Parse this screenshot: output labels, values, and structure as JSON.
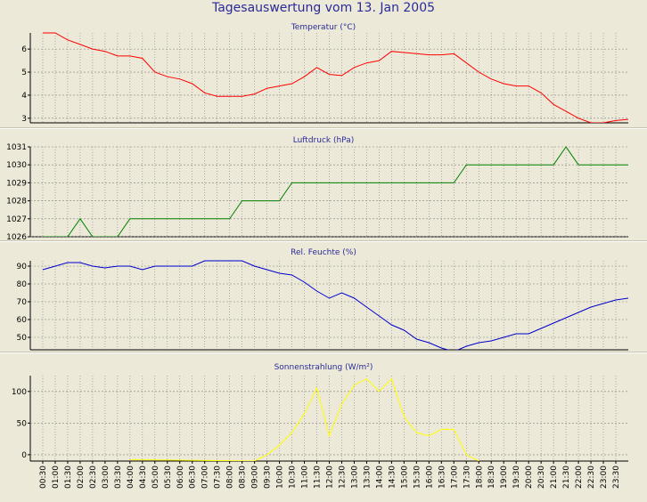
{
  "page": {
    "title": "Tagesauswertung vom 13. Jan 2005"
  },
  "time_labels": [
    "00:30",
    "01:00",
    "01:30",
    "02:00",
    "02:30",
    "03:00",
    "03:30",
    "04:00",
    "04:30",
    "05:00",
    "05:30",
    "06:00",
    "06:30",
    "07:00",
    "07:30",
    "08:00",
    "08:30",
    "09:00",
    "09:30",
    "10:00",
    "10:30",
    "11:00",
    "11:30",
    "12:00",
    "12:30",
    "13:00",
    "13:30",
    "14:00",
    "14:30",
    "15:00",
    "15:30",
    "16:00",
    "16:30",
    "17:00",
    "17:30",
    "18:00",
    "18:30",
    "19:00",
    "19:30",
    "20:00",
    "20:30",
    "21:00",
    "21:30",
    "22:00",
    "22:30",
    "23:00",
    "23:30"
  ],
  "colors": {
    "background": "#ece9d8",
    "grid": "#808080",
    "title": "#2a2a9a"
  },
  "chart_data": [
    {
      "type": "line",
      "title": "Temperatur (°C)",
      "color": "#ff0000",
      "ylim": [
        2.8,
        6.7
      ],
      "yticks": [
        3,
        4,
        5,
        6
      ],
      "x": [
        0,
        0.5,
        1,
        1.5,
        2,
        2.5,
        3,
        3.5,
        4,
        4.5,
        5,
        5.5,
        6,
        6.5,
        7,
        7.5,
        8,
        8.5,
        9,
        9.5,
        10,
        10.5,
        11,
        11.5,
        12,
        12.5,
        13,
        13.5,
        14,
        14.5,
        15,
        15.5,
        16,
        16.5,
        17,
        17.5,
        18,
        18.5,
        19,
        19.5,
        20,
        20.5,
        21,
        21.5,
        22,
        22.5,
        23,
        23.5
      ],
      "values": [
        6.7,
        6.7,
        6.4,
        6.2,
        6.0,
        5.9,
        5.7,
        5.7,
        5.6,
        5.0,
        4.8,
        4.7,
        4.5,
        4.1,
        3.95,
        3.95,
        3.95,
        4.05,
        4.3,
        4.4,
        4.5,
        4.8,
        5.2,
        4.9,
        4.85,
        5.2,
        5.4,
        5.5,
        5.9,
        5.85,
        5.8,
        5.75,
        5.75,
        5.8,
        5.4,
        5.0,
        4.7,
        4.5,
        4.4,
        4.4,
        4.1,
        3.6,
        3.3,
        3.0,
        2.8,
        2.8,
        2.9,
        2.95
      ]
    },
    {
      "type": "line",
      "title": "Luftdruck (hPa)",
      "color": "#008000",
      "ylim": [
        1026,
        1031
      ],
      "yticks": [
        1026,
        1027,
        1028,
        1029,
        1030,
        1031
      ],
      "x": [
        0,
        0.5,
        1,
        1.5,
        2,
        2.5,
        3,
        3.5,
        4,
        4.5,
        5,
        5.5,
        6,
        6.5,
        7,
        7.5,
        8,
        8.5,
        9,
        9.5,
        10,
        10.5,
        11,
        11.5,
        12,
        12.5,
        13,
        13.5,
        14,
        14.5,
        15,
        15.5,
        16,
        16.5,
        17,
        17.5,
        18,
        18.5,
        19,
        19.5,
        20,
        20.5,
        21,
        21.5,
        22,
        22.5,
        23,
        23.5
      ],
      "values": [
        1026,
        1026,
        1026,
        1027,
        1026,
        1026,
        1026,
        1027,
        1027,
        1027,
        1027,
        1027,
        1027,
        1027,
        1027,
        1027,
        1028,
        1028,
        1028,
        1028,
        1029,
        1029,
        1029,
        1029,
        1029,
        1029,
        1029,
        1029,
        1029,
        1029,
        1029,
        1029,
        1029,
        1029,
        1030,
        1030,
        1030,
        1030,
        1030,
        1030,
        1030,
        1030,
        1031,
        1030,
        1030,
        1030,
        1030,
        1030
      ]
    },
    {
      "type": "line",
      "title": "Rel. Feuchte (%)",
      "color": "#0000cc",
      "ylim": [
        43,
        93
      ],
      "yticks": [
        50,
        60,
        70,
        80,
        90
      ],
      "x": [
        0,
        0.5,
        1,
        1.5,
        2,
        2.5,
        3,
        3.5,
        4,
        4.5,
        5,
        5.5,
        6,
        6.5,
        7,
        7.5,
        8,
        8.5,
        9,
        9.5,
        10,
        10.5,
        11,
        11.5,
        12,
        12.5,
        13,
        13.5,
        14,
        14.5,
        15,
        15.5,
        16,
        16.5,
        17,
        17.5,
        18,
        18.5,
        19,
        19.5,
        20,
        20.5,
        21,
        21.5,
        22,
        22.5,
        23,
        23.5
      ],
      "values": [
        88,
        90,
        92,
        92,
        90,
        89,
        90,
        90,
        88,
        90,
        90,
        90,
        90,
        93,
        93,
        93,
        93,
        90,
        88,
        86,
        85,
        81,
        76,
        72,
        75,
        72,
        67,
        62,
        57,
        54,
        49,
        47,
        44,
        42,
        45,
        47,
        48,
        50,
        52,
        52,
        55,
        58,
        61,
        64,
        67,
        69,
        71,
        72
      ]
    },
    {
      "type": "line",
      "title": "Sonnenstrahlung (W/m²)",
      "color": "#ffff00",
      "ylim": [
        -10,
        125
      ],
      "yticks": [
        0,
        50,
        100
      ],
      "x": [
        3.5,
        4,
        8.5,
        9,
        9.5,
        10,
        10.5,
        11,
        11.5,
        12,
        12.5,
        13,
        13.5,
        14,
        14.5,
        15,
        15.5,
        16,
        16.5,
        17,
        17.5
      ],
      "values": [
        -8,
        -8,
        -10,
        0,
        15,
        35,
        65,
        105,
        30,
        80,
        110,
        120,
        100,
        120,
        60,
        35,
        30,
        40,
        40,
        0,
        -10
      ]
    }
  ]
}
